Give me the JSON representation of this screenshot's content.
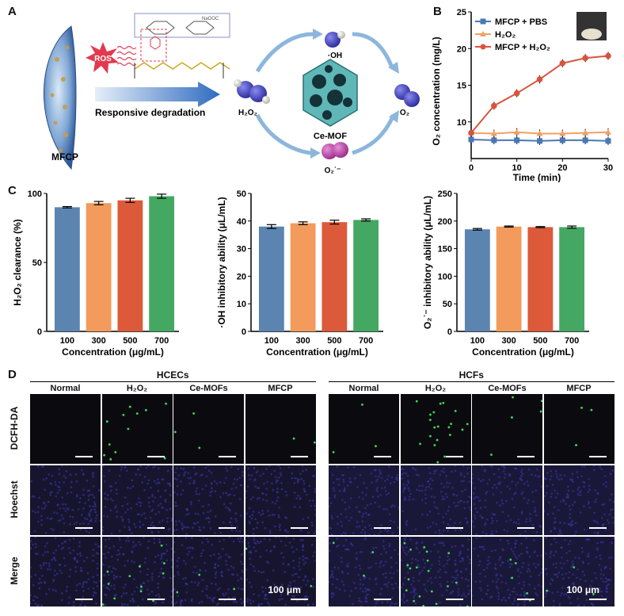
{
  "panels": {
    "a": "A",
    "b": "B",
    "c": "C",
    "d": "D"
  },
  "panelA": {
    "ros": "ROS",
    "responsive": "Responsive degradation",
    "mfcp": "MFCP",
    "h2o2": "H₂O₂",
    "oh": "·OH",
    "cemof": "Ce-MOF",
    "o2": "O₂",
    "o2rad": "O₂˙⁻",
    "chem_naooc": "NaOOC"
  },
  "panelB": {
    "inset": "vial-photo",
    "chart_data": {
      "type": "line",
      "xlabel": "Time (min)",
      "ylabel": "O₂ concentration (mg/L)",
      "x": [
        0,
        5,
        10,
        15,
        20,
        25,
        30
      ],
      "xlim": [
        0,
        30
      ],
      "ylim": [
        5,
        25
      ],
      "xticks": [
        "0",
        "10",
        "20",
        "30"
      ],
      "yticks": [
        "10",
        "15",
        "20",
        "25"
      ],
      "legend": "top-left",
      "series": [
        {
          "name": "MFCP + PBS",
          "color": "#4a78b5",
          "marker": "square",
          "values": [
            7.6,
            7.5,
            7.5,
            7.4,
            7.5,
            7.5,
            7.4
          ]
        },
        {
          "name": "H₂O₂",
          "color": "#f2a064",
          "marker": "triangle",
          "values": [
            8.5,
            8.4,
            8.6,
            8.4,
            8.4,
            8.5,
            8.6
          ]
        },
        {
          "name": "MFCP + H₂O₂",
          "color": "#d9533e",
          "marker": "circle",
          "values": [
            8.5,
            12.2,
            13.9,
            15.8,
            18.0,
            18.7,
            19.0
          ]
        }
      ]
    }
  },
  "panelC": {
    "chart_data": [
      {
        "type": "bar",
        "categories": [
          "100",
          "300",
          "500",
          "700"
        ],
        "values": [
          90,
          93,
          95,
          98
        ],
        "errors": [
          0.5,
          1.2,
          1.5,
          1.5
        ],
        "ylim": [
          0,
          100
        ],
        "yticks": [
          "0",
          "50",
          "100"
        ],
        "xlabel": "Concentration (μg/mL)",
        "ylabel": "H₂O₂ clearance (%)"
      },
      {
        "type": "bar",
        "categories": [
          "100",
          "300",
          "500",
          "700"
        ],
        "values": [
          38,
          39.2,
          39.6,
          40.4
        ],
        "errors": [
          0.7,
          0.5,
          0.7,
          0.4
        ],
        "ylim": [
          0,
          50
        ],
        "yticks": [
          "0",
          "10",
          "20",
          "30",
          "40",
          "50"
        ],
        "xlabel": "Concentration (μg/mL)",
        "ylabel": "·OH inhibitory ability (μL/mL)"
      },
      {
        "type": "bar",
        "categories": [
          "100",
          "300",
          "500",
          "700"
        ],
        "values": [
          185,
          190,
          189,
          189
        ],
        "errors": [
          1.5,
          1,
          1,
          2
        ],
        "ylim": [
          0,
          250
        ],
        "yticks": [
          "0",
          "50",
          "100",
          "150",
          "200",
          "250"
        ],
        "xlabel": "Concentration (μg/mL)",
        "ylabel": "O₂˙⁻ inhibitory ability (μL/mL)"
      }
    ],
    "colors": [
      "#5b84b1",
      "#f29b5c",
      "#dc5a3a",
      "#44a862"
    ]
  },
  "panelD": {
    "groups": [
      "HCECs",
      "HCFs"
    ],
    "columns": [
      "Normal",
      "H₂O₂",
      "Ce-MOFs",
      "MFCP"
    ],
    "rows": [
      "DCFH-DA",
      "Hoechst",
      "Merge"
    ],
    "scale": "100 μm"
  }
}
